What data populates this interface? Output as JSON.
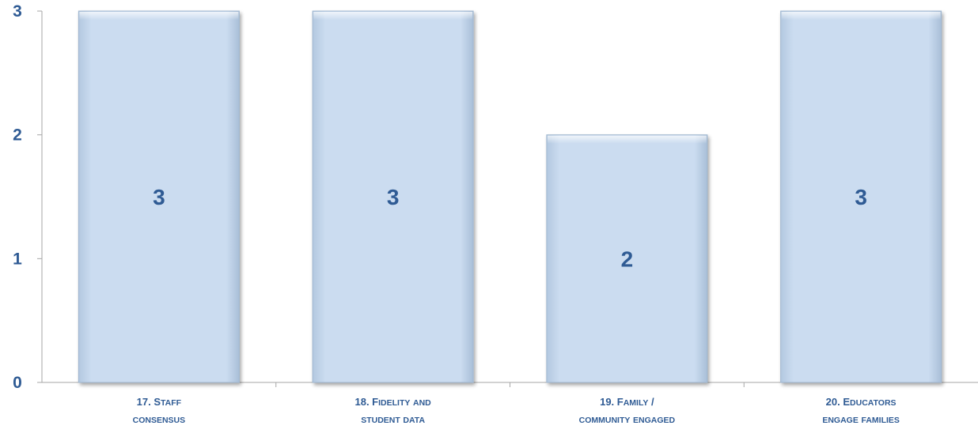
{
  "chart_data": {
    "type": "bar",
    "categories": [
      [
        "17. Staff",
        "consensus"
      ],
      [
        "18. Fidelity and",
        "student data"
      ],
      [
        "19. Family /",
        "community engaged"
      ],
      [
        "20. Educators",
        "engage families"
      ]
    ],
    "values": [
      3,
      3,
      2,
      3
    ],
    "data_labels": [
      "3",
      "3",
      "2",
      "3"
    ],
    "y_ticks": [
      "0",
      "1",
      "2",
      "3"
    ],
    "ylim": [
      0,
      3
    ],
    "title": "",
    "xlabel": "",
    "ylabel": "",
    "grid": false,
    "legend": "none",
    "colors": {
      "bar_fill": "#c9dcf1",
      "bar_edge": "#9fb6cf",
      "label_text": "#2f5b94",
      "axis": "#a6a6a6"
    }
  }
}
